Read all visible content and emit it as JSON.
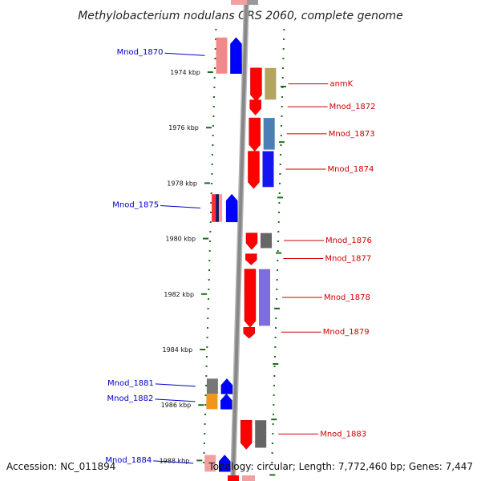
{
  "title": "Methylobacterium nodulans ORS 2060, complete genome",
  "footer": {
    "accession": "Accession: NC_011894",
    "stats": "Topology: circular; Length: 7,772,460 bp; Genes: 7,447"
  },
  "colors": {
    "left_label": "#0000cc",
    "right_label": "#cc0000",
    "tick": "#1a6e1a",
    "backbone": "#888888"
  },
  "ticks": [
    {
      "kbp": 1974,
      "label": "1974 kbp"
    },
    {
      "kbp": 1976,
      "label": "1976 kbp"
    },
    {
      "kbp": 1978,
      "label": "1978 kbp"
    },
    {
      "kbp": 1980,
      "label": "1980 kbp"
    },
    {
      "kbp": 1982,
      "label": "1982 kbp"
    },
    {
      "kbp": 1984,
      "label": "1984 kbp"
    },
    {
      "kbp": 1986,
      "label": "1986 kbp"
    },
    {
      "kbp": 1988,
      "label": "1988 kbp"
    }
  ],
  "genes": [
    {
      "name": "Mnod_1870",
      "strand": "-",
      "start": 1972.75,
      "end": 1974.05,
      "cog": "#f08a8a"
    },
    {
      "name": "anmK",
      "strand": "+",
      "start": 1973.85,
      "end": 1975.05,
      "cog": "#b3a460"
    },
    {
      "name": "Mnod_1872",
      "strand": "+",
      "start": 1975.0,
      "end": 1975.55,
      "cog": ""
    },
    {
      "name": "Mnod_1873",
      "strand": "+",
      "start": 1975.65,
      "end": 1976.85,
      "cog": "#4a7fb3"
    },
    {
      "name": "Mnod_1874",
      "strand": "+",
      "start": 1976.85,
      "end": 1978.2,
      "cog": "#1515f0"
    },
    {
      "name": "Mnod_1875",
      "strand": "-",
      "start": 1978.4,
      "end": 1979.4,
      "cog": "mixed"
    },
    {
      "name": "Mnod_1876",
      "strand": "+",
      "start": 1979.8,
      "end": 1980.4,
      "cog": "#666666"
    },
    {
      "name": "Mnod_1877",
      "strand": "+",
      "start": 1980.55,
      "end": 1980.95,
      "cog": ""
    },
    {
      "name": "Mnod_1878",
      "strand": "+",
      "start": 1981.1,
      "end": 1983.2,
      "cog": "#7d6de0"
    },
    {
      "name": "Mnod_1879",
      "strand": "+",
      "start": 1983.2,
      "end": 1983.6,
      "cog": ""
    },
    {
      "name": "Mnod_1881",
      "strand": "-",
      "start": 1985.05,
      "end": 1985.6,
      "cog": "#777777"
    },
    {
      "name": "Mnod_1882",
      "strand": "-",
      "start": 1985.6,
      "end": 1986.15,
      "cog": "#f0961a"
    },
    {
      "name": "Mnod_1883",
      "strand": "+",
      "start": 1986.55,
      "end": 1987.6,
      "cog": "#666666"
    },
    {
      "name": "Mnod_1884",
      "strand": "-",
      "start": 1987.8,
      "end": 1988.4,
      "cog": "#f0a0a0"
    }
  ]
}
